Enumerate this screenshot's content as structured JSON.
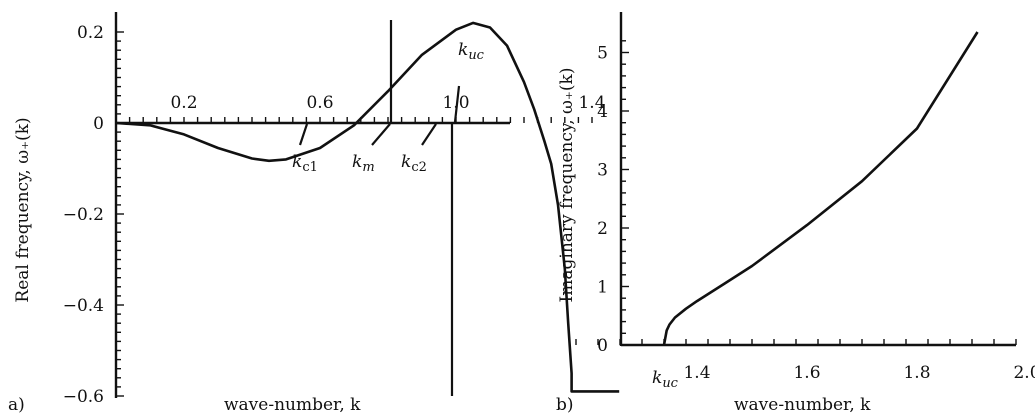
{
  "chart_data": [
    {
      "type": "line",
      "panel_label": "a)",
      "xlabel": "wave-number, k",
      "ylabel": "Real frequency, ω₊(k)",
      "xlim": [
        0.0,
        1.48
      ],
      "ylim": [
        -0.6,
        0.22
      ],
      "x_ticks": [
        {
          "value": 0.2,
          "label": "0.2"
        },
        {
          "value": 0.6,
          "label": "0.6"
        },
        {
          "value": 1.0,
          "label": "1.0"
        },
        {
          "value": 1.4,
          "label": "1.4"
        }
      ],
      "y_ticks": [
        {
          "value": 0.2,
          "label": "0.2"
        },
        {
          "value": 0.0,
          "label": "0"
        },
        {
          "value": -0.2,
          "label": "−0.2"
        },
        {
          "value": -0.4,
          "label": "−0.4"
        },
        {
          "value": -0.6,
          "label": "−0.6"
        }
      ],
      "series": [
        {
          "x": [
            0.0,
            0.1,
            0.2,
            0.3,
            0.4,
            0.45,
            0.5,
            0.6,
            0.7,
            0.8,
            0.9,
            1.0,
            1.05,
            1.1,
            1.15,
            1.2,
            1.23,
            1.26,
            1.28,
            1.3,
            1.32,
            1.33,
            1.34,
            1.34,
            1.48
          ],
          "y": [
            0.0,
            -0.005,
            -0.025,
            -0.055,
            -0.078,
            -0.083,
            -0.08,
            -0.055,
            -0.005,
            0.07,
            0.15,
            0.205,
            0.22,
            0.21,
            0.17,
            0.09,
            0.03,
            -0.04,
            -0.09,
            -0.18,
            -0.32,
            -0.44,
            -0.55,
            -0.59,
            -0.59
          ]
        }
      ],
      "annotations": [
        {
          "label": "k_c1",
          "x": 0.725
        },
        {
          "label": "k_m",
          "x": 1.05
        },
        {
          "label": "k_c2",
          "x": 1.24
        },
        {
          "label": "k_uc",
          "x": 1.34
        }
      ]
    },
    {
      "type": "line",
      "panel_label": "b)",
      "xlabel": "wave-number, k",
      "ylabel": "Imaginary frequency, ω₊(k)",
      "xlim": [
        1.17,
        2.0
      ],
      "ylim": [
        0,
        5.3
      ],
      "x_ticks": [
        {
          "value": 1.4,
          "label": "1.4"
        },
        {
          "value": 1.6,
          "label": "1.6"
        },
        {
          "value": 1.8,
          "label": "1.8"
        },
        {
          "value": 2.0,
          "label": "2.0"
        }
      ],
      "y_ticks": [
        {
          "value": 0,
          "label": "0"
        },
        {
          "value": 1,
          "label": "1"
        },
        {
          "value": 2,
          "label": "2"
        },
        {
          "value": 3,
          "label": "3"
        },
        {
          "value": 4,
          "label": "4"
        },
        {
          "value": 5,
          "label": "5"
        }
      ],
      "series": [
        {
          "x": [
            1.34,
            1.345,
            1.35,
            1.36,
            1.38,
            1.4,
            1.45,
            1.5,
            1.6,
            1.7,
            1.8,
            1.91
          ],
          "y": [
            0.0,
            0.25,
            0.35,
            0.47,
            0.62,
            0.75,
            1.05,
            1.35,
            2.05,
            2.8,
            3.7,
            5.35
          ]
        }
      ],
      "annotations": [
        {
          "label": "k_uc",
          "x": 1.34
        }
      ]
    }
  ]
}
